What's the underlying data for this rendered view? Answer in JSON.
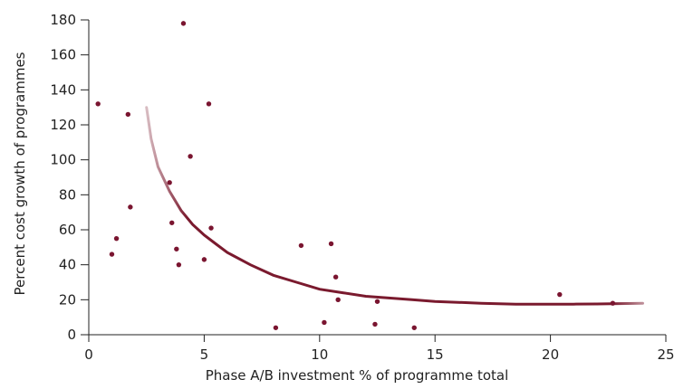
{
  "chart_data": {
    "type": "scatter",
    "title": "",
    "xlabel": "Phase A/B investment % of programme total",
    "ylabel": "Percent cost growth of programmes",
    "xlim": [
      0,
      25
    ],
    "ylim": [
      0,
      180
    ],
    "xticks": [
      0,
      5,
      10,
      15,
      20,
      25
    ],
    "yticks": [
      0,
      20,
      40,
      60,
      80,
      100,
      120,
      140,
      160,
      180
    ],
    "grid": false,
    "legend": "none",
    "colors": {
      "points": "#7a1530",
      "trend": "#7a1a2e",
      "axis": "#222222"
    },
    "series": [
      {
        "values": [
          {
            "x": 0.4,
            "y": 132
          },
          {
            "x": 1.0,
            "y": 46
          },
          {
            "x": 1.2,
            "y": 55
          },
          {
            "x": 1.7,
            "y": 126
          },
          {
            "x": 1.8,
            "y": 73
          },
          {
            "x": 3.5,
            "y": 87
          },
          {
            "x": 3.6,
            "y": 64
          },
          {
            "x": 3.8,
            "y": 49
          },
          {
            "x": 3.9,
            "y": 40
          },
          {
            "x": 4.1,
            "y": 178
          },
          {
            "x": 4.4,
            "y": 102
          },
          {
            "x": 5.0,
            "y": 43
          },
          {
            "x": 5.2,
            "y": 132
          },
          {
            "x": 5.3,
            "y": 61
          },
          {
            "x": 8.1,
            "y": 4
          },
          {
            "x": 9.2,
            "y": 51
          },
          {
            "x": 10.2,
            "y": 7
          },
          {
            "x": 10.5,
            "y": 52
          },
          {
            "x": 10.7,
            "y": 33
          },
          {
            "x": 10.8,
            "y": 20
          },
          {
            "x": 12.4,
            "y": 6
          },
          {
            "x": 12.5,
            "y": 19
          },
          {
            "x": 14.1,
            "y": 4
          },
          {
            "x": 20.4,
            "y": 23
          },
          {
            "x": 22.7,
            "y": 18
          }
        ]
      }
    ],
    "trendline": {
      "type": "fitted curve",
      "points": [
        {
          "x": 2.5,
          "y": 130
        },
        {
          "x": 2.7,
          "y": 112
        },
        {
          "x": 3.0,
          "y": 96
        },
        {
          "x": 3.5,
          "y": 82
        },
        {
          "x": 4.0,
          "y": 71
        },
        {
          "x": 4.5,
          "y": 63
        },
        {
          "x": 5.0,
          "y": 57
        },
        {
          "x": 5.5,
          "y": 52
        },
        {
          "x": 6.0,
          "y": 47
        },
        {
          "x": 7.0,
          "y": 40
        },
        {
          "x": 8.0,
          "y": 34
        },
        {
          "x": 9.0,
          "y": 30
        },
        {
          "x": 10.0,
          "y": 26
        },
        {
          "x": 11.0,
          "y": 24
        },
        {
          "x": 12.0,
          "y": 22
        },
        {
          "x": 13.0,
          "y": 21
        },
        {
          "x": 14.0,
          "y": 20
        },
        {
          "x": 15.0,
          "y": 19
        },
        {
          "x": 16.0,
          "y": 18.5
        },
        {
          "x": 17.0,
          "y": 18
        },
        {
          "x": 18.5,
          "y": 17.5
        },
        {
          "x": 20.0,
          "y": 17.5
        },
        {
          "x": 21.0,
          "y": 17.5
        },
        {
          "x": 22.0,
          "y": 17.6
        },
        {
          "x": 23.0,
          "y": 17.8
        },
        {
          "x": 24.0,
          "y": 18
        }
      ]
    }
  }
}
